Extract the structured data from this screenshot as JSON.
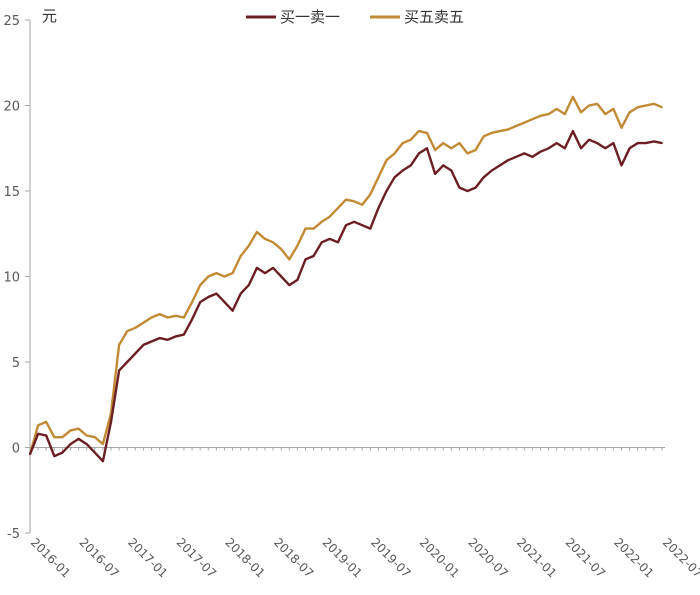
{
  "chart_data": {
    "type": "line",
    "unit_label": "元",
    "ylim": [
      -5,
      25
    ],
    "yticks": [
      -5,
      0,
      5,
      10,
      15,
      20,
      25
    ],
    "xticks": [
      "2016-01",
      "2016-07",
      "2017-01",
      "2017-07",
      "2018-01",
      "2018-07",
      "2019-01",
      "2019-07",
      "2020-01",
      "2020-07",
      "2021-01",
      "2021-07",
      "2022-01",
      "2022-07"
    ],
    "legend_position": "top-center",
    "grid": false,
    "x": [
      "2016-01",
      "2016-02",
      "2016-03",
      "2016-04",
      "2016-05",
      "2016-06",
      "2016-07",
      "2016-08",
      "2016-09",
      "2016-10",
      "2016-11",
      "2016-12",
      "2017-01",
      "2017-02",
      "2017-03",
      "2017-04",
      "2017-05",
      "2017-06",
      "2017-07",
      "2017-08",
      "2017-09",
      "2017-10",
      "2017-11",
      "2017-12",
      "2018-01",
      "2018-02",
      "2018-03",
      "2018-04",
      "2018-05",
      "2018-06",
      "2018-07",
      "2018-08",
      "2018-09",
      "2018-10",
      "2018-11",
      "2018-12",
      "2019-01",
      "2019-02",
      "2019-03",
      "2019-04",
      "2019-05",
      "2019-06",
      "2019-07",
      "2019-08",
      "2019-09",
      "2019-10",
      "2019-11",
      "2019-12",
      "2020-01",
      "2020-02",
      "2020-03",
      "2020-04",
      "2020-05",
      "2020-06",
      "2020-07",
      "2020-08",
      "2020-09",
      "2020-10",
      "2020-11",
      "2020-12",
      "2021-01",
      "2021-02",
      "2021-03",
      "2021-04",
      "2021-05",
      "2021-06",
      "2021-07",
      "2021-08",
      "2021-09",
      "2021-10",
      "2021-11",
      "2021-12",
      "2022-01",
      "2022-02",
      "2022-03",
      "2022-04",
      "2022-05",
      "2022-06",
      "2022-07"
    ],
    "series": [
      {
        "name": "买一卖一",
        "color": "#6b1f24",
        "values": [
          -0.4,
          0.8,
          0.7,
          -0.5,
          -0.3,
          0.2,
          0.5,
          0.2,
          -0.3,
          -0.8,
          1.5,
          4.5,
          5.0,
          5.5,
          6.0,
          6.2,
          6.4,
          6.3,
          6.5,
          6.6,
          7.5,
          8.5,
          8.8,
          9.0,
          8.5,
          8.0,
          9.0,
          9.5,
          10.5,
          10.2,
          10.5,
          10.0,
          9.5,
          9.8,
          11.0,
          11.2,
          12.0,
          12.2,
          12.0,
          13.0,
          13.2,
          13.0,
          12.8,
          14.0,
          15.0,
          15.8,
          16.2,
          16.5,
          17.2,
          17.5,
          16.0,
          16.5,
          16.2,
          15.2,
          15.0,
          15.2,
          15.8,
          16.2,
          16.5,
          16.8,
          17.0,
          17.2,
          17.0,
          17.3,
          17.5,
          17.8,
          17.5,
          18.5,
          17.5,
          18.0,
          17.8,
          17.5,
          17.8,
          16.5,
          17.5,
          17.8,
          17.8,
          17.9,
          17.8
        ]
      },
      {
        "name": "买五卖五",
        "color": "#c28a35",
        "values": [
          -0.4,
          1.3,
          1.5,
          0.6,
          0.6,
          1.0,
          1.1,
          0.7,
          0.6,
          0.2,
          2.0,
          6.0,
          6.8,
          7.0,
          7.3,
          7.6,
          7.8,
          7.6,
          7.7,
          7.6,
          8.5,
          9.5,
          10.0,
          10.2,
          10.0,
          10.2,
          11.2,
          11.8,
          12.6,
          12.2,
          12.0,
          11.6,
          11.0,
          11.8,
          12.8,
          12.8,
          13.2,
          13.5,
          14.0,
          14.5,
          14.4,
          14.2,
          14.8,
          15.8,
          16.8,
          17.2,
          17.8,
          18.0,
          18.5,
          18.4,
          17.4,
          17.8,
          17.5,
          17.8,
          17.2,
          17.4,
          18.2,
          18.4,
          18.5,
          18.6,
          18.8,
          19.0,
          19.2,
          19.4,
          19.5,
          19.8,
          19.5,
          20.5,
          19.6,
          20.0,
          20.1,
          19.5,
          19.8,
          18.7,
          19.6,
          19.9,
          20.0,
          20.1,
          19.9
        ]
      }
    ]
  }
}
